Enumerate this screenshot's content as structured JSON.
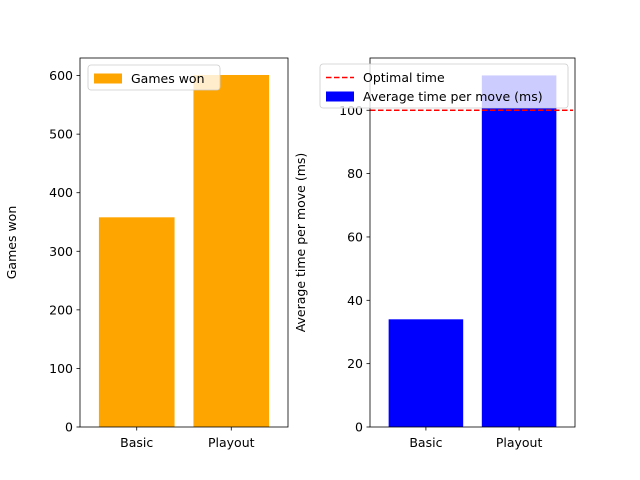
{
  "chart_data": [
    {
      "type": "bar",
      "categories": [
        "Basic",
        "Playout"
      ],
      "series": [
        {
          "name": "Games won",
          "values": [
            358,
            601
          ],
          "color": "#ffa500"
        }
      ],
      "xlabel": "",
      "ylabel": "Games won",
      "ylim": [
        0,
        630
      ],
      "yticks": [
        0,
        100,
        200,
        300,
        400,
        500,
        600
      ],
      "legend": {
        "position": "upper-left"
      },
      "grid": false
    },
    {
      "type": "bar",
      "categories": [
        "Basic",
        "Playout"
      ],
      "series": [
        {
          "name": "Average time per move (ms)",
          "values": [
            34,
            111
          ],
          "color": "#0000ff"
        }
      ],
      "reference_line": {
        "name": "Optimal time",
        "y": 100,
        "color": "#ff0000",
        "style": "dashed"
      },
      "xlabel": "",
      "ylabel": "Average time per move (ms)",
      "ylim": [
        0,
        116.5
      ],
      "yticks": [
        0,
        20,
        40,
        60,
        80,
        100
      ],
      "legend": {
        "position": "upper-left"
      },
      "grid": false
    }
  ]
}
